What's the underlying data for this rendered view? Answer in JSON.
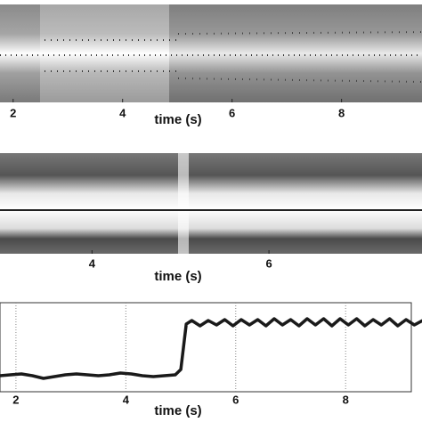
{
  "chart_data": [
    {
      "type": "image",
      "xlabel": "time (s)",
      "xlim": [
        1.76,
        9.47
      ],
      "xticks": [
        2,
        4,
        6,
        8
      ]
    },
    {
      "type": "image",
      "xlabel": "time (s)",
      "xlim": [
        2.96,
        7.73
      ],
      "xticks": [
        4,
        6
      ]
    },
    {
      "type": "line",
      "xlabel": "time (s)",
      "xlim": [
        1.71,
        9.39
      ],
      "xticks": [
        2,
        4,
        6,
        8
      ],
      "ylim": [
        0,
        1
      ],
      "grid": true,
      "series": [
        {
          "color": "#1a1a1a",
          "x": [
            1.7,
            1.9,
            2.1,
            2.3,
            2.5,
            2.7,
            2.9,
            3.1,
            3.3,
            3.5,
            3.7,
            3.9,
            4.1,
            4.3,
            4.5,
            4.7,
            4.9,
            5.0,
            5.05,
            5.1,
            5.2,
            5.35,
            5.5,
            5.65,
            5.8,
            5.95,
            6.1,
            6.25,
            6.4,
            6.55,
            6.7,
            6.85,
            7.0,
            7.15,
            7.3,
            7.45,
            7.6,
            7.75,
            7.9,
            8.05,
            8.2,
            8.35,
            8.5,
            8.65,
            8.8,
            8.95,
            9.1,
            9.25,
            9.4
          ],
          "values": [
            0.18,
            0.19,
            0.2,
            0.18,
            0.15,
            0.17,
            0.19,
            0.2,
            0.19,
            0.18,
            0.19,
            0.21,
            0.2,
            0.18,
            0.17,
            0.18,
            0.19,
            0.25,
            0.5,
            0.76,
            0.8,
            0.74,
            0.8,
            0.75,
            0.81,
            0.74,
            0.81,
            0.75,
            0.81,
            0.74,
            0.82,
            0.75,
            0.81,
            0.74,
            0.82,
            0.75,
            0.82,
            0.74,
            0.82,
            0.75,
            0.82,
            0.74,
            0.81,
            0.75,
            0.82,
            0.74,
            0.81,
            0.75,
            0.8
          ]
        }
      ]
    }
  ]
}
